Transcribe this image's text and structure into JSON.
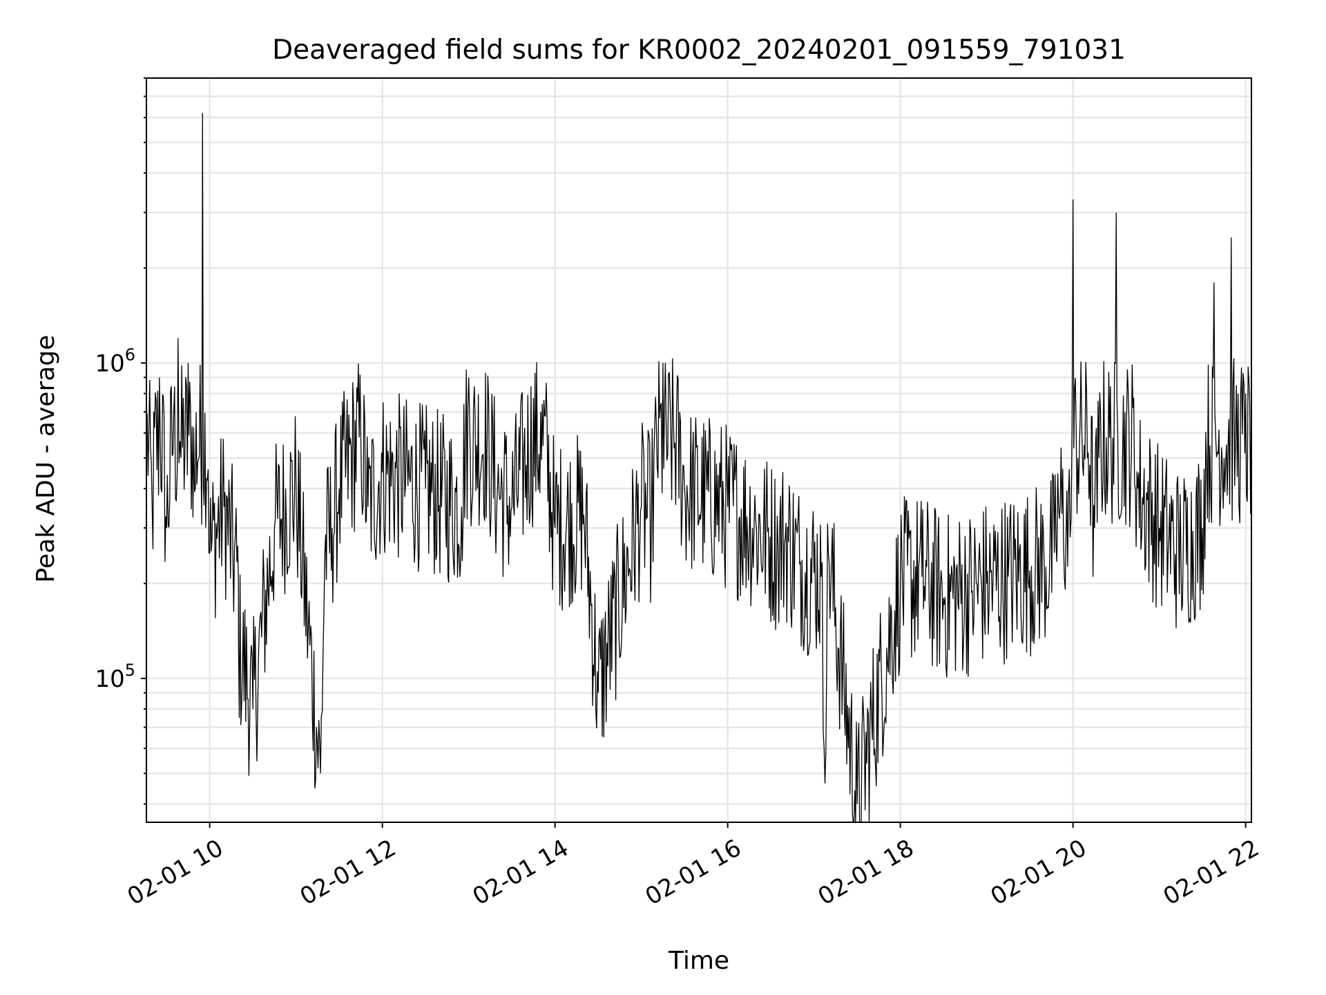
{
  "chart_data": {
    "type": "line",
    "title": "Deaveraged field sums for KR0002_20240201_091559_791031",
    "xlabel": "Time",
    "ylabel": "Peak ADU - average",
    "x_tick_labels": [
      "02-01 10",
      "02-01 12",
      "02-01 14",
      "02-01 16",
      "02-01 18",
      "02-01 20",
      "02-01 22"
    ],
    "x_tick_values": [
      "2024-02-01 10:00",
      "2024-02-01 12:00",
      "2024-02-01 14:00",
      "2024-02-01 16:00",
      "2024-02-01 18:00",
      "2024-02-01 20:00",
      "2024-02-01 22:00"
    ],
    "xlim": [
      "2024-02-01 09:16",
      "2024-02-01 22:04"
    ],
    "y_scale": "log",
    "y_tick_labels": [
      {
        "base": "10",
        "exp": "5"
      },
      {
        "base": "10",
        "exp": "6"
      }
    ],
    "y_tick_values": [
      100000,
      1000000
    ],
    "ylim": [
      35000,
      8000000
    ],
    "grid": true,
    "line_color": "#000000",
    "series": [
      {
        "x": [
          "2024-02-01 09:16",
          "2024-02-01 09:20",
          "2024-02-01 09:25",
          "2024-02-01 09:30",
          "2024-02-01 09:35",
          "2024-02-01 09:38",
          "2024-02-01 09:40",
          "2024-02-01 09:45",
          "2024-02-01 09:50",
          "2024-02-01 09:55",
          "2024-02-01 10:00",
          "2024-02-01 10:10",
          "2024-02-01 10:20",
          "2024-02-01 10:20",
          "2024-02-01 10:30",
          "2024-02-01 10:45",
          "2024-02-01 11:00",
          "2024-02-01 11:17",
          "2024-02-01 11:20",
          "2024-02-01 11:25",
          "2024-02-01 11:30",
          "2024-02-01 11:45",
          "2024-02-01 11:50",
          "2024-02-01 12:00",
          "2024-02-01 12:30",
          "2024-02-01 12:55",
          "2024-02-01 13:00",
          "2024-02-01 13:20",
          "2024-02-01 13:30",
          "2024-02-01 13:50",
          "2024-02-01 14:00",
          "2024-02-01 14:20",
          "2024-02-01 14:30",
          "2024-02-01 15:00",
          "2024-02-01 15:07",
          "2024-02-01 15:15",
          "2024-02-01 15:30",
          "2024-02-01 16:00",
          "2024-02-01 16:20",
          "2024-02-01 16:35",
          "2024-02-01 16:40",
          "2024-02-01 16:50",
          "2024-02-01 17:05",
          "2024-02-01 17:07",
          "2024-02-01 17:10",
          "2024-02-01 17:30",
          "2024-02-01 18:00",
          "2024-02-01 18:15",
          "2024-02-01 18:30",
          "2024-02-01 18:50",
          "2024-02-01 19:00",
          "2024-02-01 19:15",
          "2024-02-01 19:30",
          "2024-02-01 19:40",
          "2024-02-01 19:47",
          "2024-02-01 19:50",
          "2024-02-01 19:58",
          "2024-02-01 20:00",
          "2024-02-01 20:15",
          "2024-02-01 20:18",
          "2024-02-01 20:30",
          "2024-02-01 20:45",
          "2024-02-01 21:00",
          "2024-02-01 21:15",
          "2024-02-01 21:30",
          "2024-02-01 21:38",
          "2024-02-01 21:45",
          "2024-02-01 21:50",
          "2024-02-01 21:53",
          "2024-02-01 22:00",
          "2024-02-01 22:04"
        ],
        "y": [
          700000,
          350000,
          900000,
          300000,
          700000,
          1200000,
          500000,
          1000000,
          400000,
          6200000,
          250000,
          350000,
          200000,
          130000,
          80000,
          300000,
          400000,
          50000,
          250000,
          300000,
          400000,
          600000,
          350000,
          450000,
          400000,
          350000,
          900000,
          400000,
          350000,
          700000,
          300000,
          330000,
          90000,
          350000,
          320000,
          1000000,
          400000,
          350000,
          300000,
          260000,
          280000,
          230000,
          210000,
          60000,
          250000,
          40000,
          200000,
          210000,
          180000,
          190000,
          200000,
          210000,
          220000,
          230000,
          250000,
          350000,
          280000,
          3300000,
          300000,
          500000,
          3000000,
          400000,
          300000,
          250000,
          300000,
          1800000,
          500000,
          2500000,
          600000,
          800000,
          900000
        ]
      }
    ],
    "y_range_note": ""
  }
}
